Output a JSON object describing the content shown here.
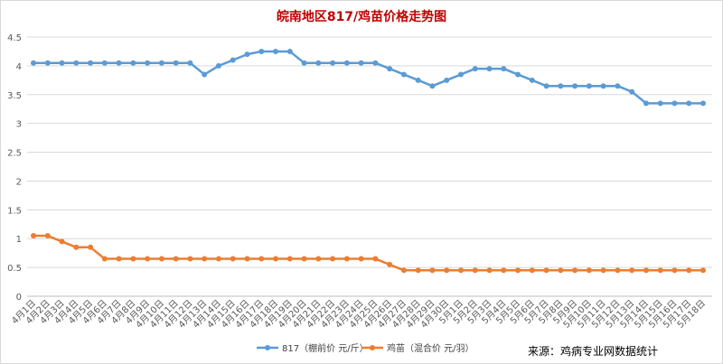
{
  "colors": {
    "title": "#c00000",
    "series_817": "#5b9bd5",
    "series_chick": "#ed7d31",
    "grid": "#d9d9d9",
    "axis_text": "#595959"
  },
  "chart_data": {
    "type": "line",
    "title": "皖南地区817/鸡苗价格走势图",
    "xlabel": "",
    "ylabel": "",
    "ylim": [
      0,
      4.5
    ],
    "yticks": [
      "0",
      "0.5",
      "1",
      "1.5",
      "2",
      "2.5",
      "3",
      "3.5",
      "4",
      "4.5"
    ],
    "grid": true,
    "legend_position": "bottom",
    "categories": [
      "4月1日",
      "4月2日",
      "4月3日",
      "4月4日",
      "4月5日",
      "4月6日",
      "4月7日",
      "4月8日",
      "4月9日",
      "4月10日",
      "4月11日",
      "4月12日",
      "4月13日",
      "4月14日",
      "4月15日",
      "4月16日",
      "4月17日",
      "4月18日",
      "4月19日",
      "4月20日",
      "4月21日",
      "4月22日",
      "4月23日",
      "4月24日",
      "4月25日",
      "4月26日",
      "4月27日",
      "4月28日",
      "4月29日",
      "4月30日",
      "5月1日",
      "5月2日",
      "5月3日",
      "5月4日",
      "5月5日",
      "5月6日",
      "5月7日",
      "5月8日",
      "5月9日",
      "5月10日",
      "5月11日",
      "5月12日",
      "5月13日",
      "5月14日",
      "5月15日",
      "5月16日",
      "5月17日",
      "5月18日"
    ],
    "series": [
      {
        "name": "817（棚前价 元/斤）",
        "values": [
          4.05,
          4.05,
          4.05,
          4.05,
          4.05,
          4.05,
          4.05,
          4.05,
          4.05,
          4.05,
          4.05,
          4.05,
          3.85,
          4.0,
          4.1,
          4.2,
          4.25,
          4.25,
          4.25,
          4.05,
          4.05,
          4.05,
          4.05,
          4.05,
          4.05,
          3.95,
          3.85,
          3.75,
          3.65,
          3.75,
          3.85,
          3.95,
          3.95,
          3.95,
          3.85,
          3.75,
          3.65,
          3.65,
          3.65,
          3.65,
          3.65,
          3.65,
          3.55,
          3.35,
          3.35,
          3.35,
          3.35,
          3.35
        ]
      },
      {
        "name": "鸡苗（混合价 元/羽）",
        "values": [
          1.05,
          1.05,
          0.95,
          0.85,
          0.85,
          0.65,
          0.65,
          0.65,
          0.65,
          0.65,
          0.65,
          0.65,
          0.65,
          0.65,
          0.65,
          0.65,
          0.65,
          0.65,
          0.65,
          0.65,
          0.65,
          0.65,
          0.65,
          0.65,
          0.65,
          0.55,
          0.45,
          0.45,
          0.45,
          0.45,
          0.45,
          0.45,
          0.45,
          0.45,
          0.45,
          0.45,
          0.45,
          0.45,
          0.45,
          0.45,
          0.45,
          0.45,
          0.45,
          0.45,
          0.45,
          0.45,
          0.45,
          0.45
        ]
      }
    ]
  },
  "source_text": "来源：鸡病专业网数据统计"
}
